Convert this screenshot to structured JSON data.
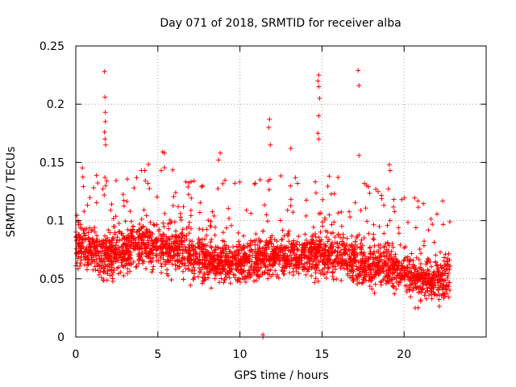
{
  "chart_data": {
    "type": "scatter",
    "title": "Day 071 of 2018, SRMTID for receiver alba",
    "xlabel": "GPS time / hours",
    "ylabel": "SRMTID / TECUs",
    "xlim": [
      0,
      25
    ],
    "ylim": [
      0,
      0.25
    ],
    "xticks": [
      0,
      5,
      10,
      15,
      20
    ],
    "xtick_labels": [
      "0",
      "5",
      "10",
      "15",
      "20"
    ],
    "yticks": [
      0,
      0.05,
      0.1,
      0.15,
      0.2,
      0.25
    ],
    "ytick_labels": [
      "0",
      "0.05",
      "0.1",
      "0.15",
      "0.2",
      "0.25"
    ],
    "grid": true,
    "marker": "+",
    "marker_color": "#ff0000",
    "point_count_estimate": 2800,
    "baseline_profile": [
      {
        "x": 0.0,
        "y": 0.08
      },
      {
        "x": 2.0,
        "y": 0.07
      },
      {
        "x": 4.0,
        "y": 0.08
      },
      {
        "x": 6.0,
        "y": 0.075
      },
      {
        "x": 8.0,
        "y": 0.065
      },
      {
        "x": 10.0,
        "y": 0.065
      },
      {
        "x": 12.0,
        "y": 0.07
      },
      {
        "x": 14.0,
        "y": 0.07
      },
      {
        "x": 15.5,
        "y": 0.07
      },
      {
        "x": 17.0,
        "y": 0.065
      },
      {
        "x": 19.0,
        "y": 0.06
      },
      {
        "x": 21.0,
        "y": 0.05
      },
      {
        "x": 22.8,
        "y": 0.05
      }
    ],
    "highlighted_points": [
      {
        "x": 1.75,
        "y": 0.228
      },
      {
        "x": 1.78,
        "y": 0.206
      },
      {
        "x": 1.8,
        "y": 0.193
      },
      {
        "x": 1.8,
        "y": 0.185
      },
      {
        "x": 1.75,
        "y": 0.176
      },
      {
        "x": 1.78,
        "y": 0.17
      },
      {
        "x": 1.82,
        "y": 0.165
      },
      {
        "x": 1.78,
        "y": 0.137
      },
      {
        "x": 1.82,
        "y": 0.13
      },
      {
        "x": 4.0,
        "y": 0.143
      },
      {
        "x": 4.2,
        "y": 0.143
      },
      {
        "x": 5.3,
        "y": 0.159
      },
      {
        "x": 5.4,
        "y": 0.158
      },
      {
        "x": 8.8,
        "y": 0.158
      },
      {
        "x": 8.7,
        "y": 0.152
      },
      {
        "x": 11.8,
        "y": 0.187
      },
      {
        "x": 11.75,
        "y": 0.18
      },
      {
        "x": 11.85,
        "y": 0.165
      },
      {
        "x": 13.1,
        "y": 0.162
      },
      {
        "x": 14.8,
        "y": 0.225
      },
      {
        "x": 14.75,
        "y": 0.22
      },
      {
        "x": 14.8,
        "y": 0.215
      },
      {
        "x": 14.85,
        "y": 0.205
      },
      {
        "x": 14.8,
        "y": 0.19
      },
      {
        "x": 14.75,
        "y": 0.175
      },
      {
        "x": 14.8,
        "y": 0.17
      },
      {
        "x": 17.2,
        "y": 0.229
      },
      {
        "x": 17.25,
        "y": 0.216
      },
      {
        "x": 17.25,
        "y": 0.156
      },
      {
        "x": 19.1,
        "y": 0.148
      },
      {
        "x": 19.15,
        "y": 0.143
      },
      {
        "x": 11.4,
        "y": 0.0
      },
      {
        "x": 11.4,
        "y": 0.002
      }
    ]
  }
}
